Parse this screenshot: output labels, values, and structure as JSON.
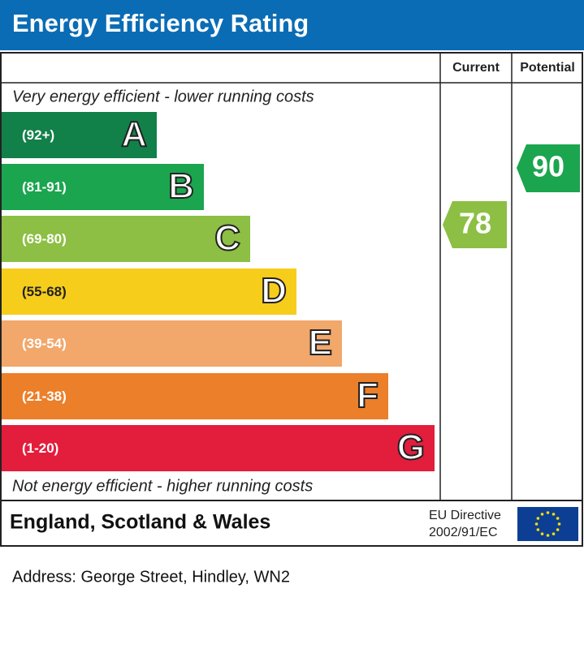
{
  "header": {
    "title": "Energy Efficiency Rating"
  },
  "columns": {
    "current": "Current",
    "potential": "Potential"
  },
  "top_note": "Very energy efficient - lower running costs",
  "bottom_note": "Not energy efficient - higher running costs",
  "bands": [
    {
      "range": "(92+)",
      "letter": "A",
      "color": "#128049"
    },
    {
      "range": "(81-91)",
      "letter": "B",
      "color": "#1ba54f"
    },
    {
      "range": "(69-80)",
      "letter": "C",
      "color": "#8cbf43"
    },
    {
      "range": "(55-68)",
      "letter": "D",
      "color": "#f7cd1c"
    },
    {
      "range": "(39-54)",
      "letter": "E",
      "color": "#f2a76b"
    },
    {
      "range": "(21-38)",
      "letter": "F",
      "color": "#ec7f2a"
    },
    {
      "range": "(1-20)",
      "letter": "G",
      "color": "#e31d3c"
    }
  ],
  "current": {
    "value": "78",
    "color": "#8cbf43"
  },
  "potential": {
    "value": "90",
    "color": "#1ba54f"
  },
  "footer": {
    "region": "England, Scotland & Wales",
    "directive_line1": "EU Directive",
    "directive_line2": "2002/91/EC"
  },
  "address": "Address: George Street, Hindley, WN2"
}
